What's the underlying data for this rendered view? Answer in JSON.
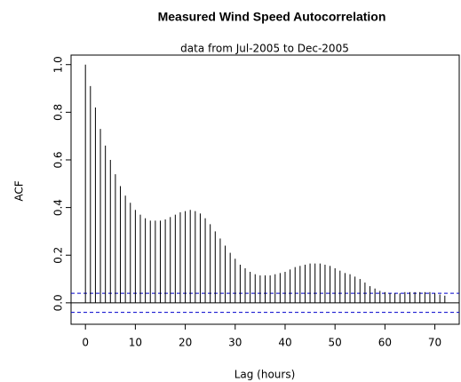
{
  "chart_data": {
    "type": "acf",
    "title": "Measured Wind Speed Autocorrelation",
    "subtitle": "data from Jul-2005 to Dec-2005",
    "x_label": "Lag (hours)",
    "y_label": "ACF",
    "x": [
      0,
      1,
      2,
      3,
      4,
      5,
      6,
      7,
      8,
      9,
      10,
      11,
      12,
      13,
      14,
      15,
      16,
      17,
      18,
      19,
      20,
      21,
      22,
      23,
      24,
      25,
      26,
      27,
      28,
      29,
      30,
      31,
      32,
      33,
      34,
      35,
      36,
      37,
      38,
      39,
      40,
      41,
      42,
      43,
      44,
      45,
      46,
      47,
      48,
      49,
      50,
      51,
      52,
      53,
      54,
      55,
      56,
      57,
      58,
      59,
      60,
      61,
      62,
      63,
      64,
      65,
      66,
      67,
      68,
      69,
      70,
      71,
      72
    ],
    "values": [
      1.0,
      0.91,
      0.82,
      0.73,
      0.66,
      0.6,
      0.54,
      0.49,
      0.45,
      0.42,
      0.39,
      0.37,
      0.355,
      0.345,
      0.345,
      0.345,
      0.35,
      0.36,
      0.37,
      0.38,
      0.385,
      0.39,
      0.385,
      0.375,
      0.355,
      0.33,
      0.3,
      0.27,
      0.24,
      0.21,
      0.185,
      0.16,
      0.145,
      0.13,
      0.12,
      0.115,
      0.115,
      0.115,
      0.12,
      0.125,
      0.13,
      0.14,
      0.15,
      0.155,
      0.16,
      0.165,
      0.165,
      0.165,
      0.16,
      0.155,
      0.145,
      0.135,
      0.125,
      0.12,
      0.11,
      0.1,
      0.085,
      0.07,
      0.06,
      0.05,
      0.045,
      0.04,
      0.04,
      0.04,
      0.045,
      0.045,
      0.045,
      0.045,
      0.045,
      0.045,
      0.04,
      0.035,
      0.03
    ],
    "color": "#000000",
    "conf_lines": [
      0.04,
      -0.04
    ],
    "conf_color": "#0000cc",
    "xlim": [
      -2.88,
      74.88
    ],
    "ylim": [
      -0.09,
      1.04
    ],
    "xticks": [
      0,
      10,
      20,
      30,
      40,
      50,
      60,
      70
    ],
    "yticks": [
      {
        "value": 0,
        "label": "0.0"
      },
      0.2,
      0.4,
      0.6,
      0.8,
      {
        "value": 1,
        "label": "1.0"
      }
    ]
  }
}
